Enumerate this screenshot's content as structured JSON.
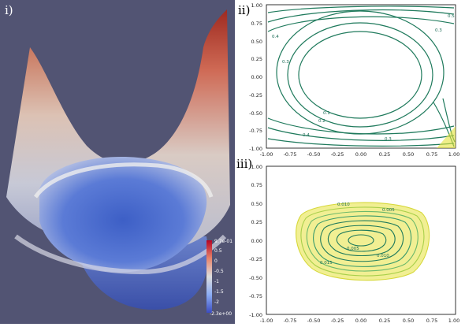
{
  "panels": {
    "surface": {
      "label": "i)",
      "colorbar": {
        "max_label": "9.7e-01",
        "min_label": "-2.3e+00",
        "ticks": [
          "0.5",
          "0",
          "-0.5",
          "-1",
          "-1.5",
          "-2"
        ],
        "colors": {
          "top": "#b40426",
          "mid": "#dddddd",
          "bottom": "#3b4cc0"
        }
      },
      "background": "#525473"
    },
    "contour_top": {
      "label": "ii)",
      "x_ticks": [
        "-1.00",
        "-0.75",
        "-0.50",
        "-0.25",
        "0.00",
        "0.25",
        "0.50",
        "0.75",
        "1.00"
      ],
      "y_ticks": [
        "1.00",
        "0.75",
        "0.50",
        "0.25",
        "0.00",
        "-0.25",
        "-0.50",
        "-0.75",
        "-1.00"
      ],
      "contour_labels": [
        "0.4",
        "0.3",
        "0.2",
        "0.1",
        "0.3",
        "0.4",
        "0.5",
        "0.1"
      ],
      "line_color": "#1f7a5c"
    },
    "contour_bottom": {
      "label": "iii)",
      "x_ticks": [
        "-1.00",
        "-0.75",
        "-0.50",
        "-0.25",
        "0.00",
        "0.25",
        "0.50",
        "0.75",
        "1.00"
      ],
      "y_ticks": [
        "1.00",
        "0.75",
        "0.50",
        "0.25",
        "0.00",
        "-0.25",
        "-0.50",
        "-0.75",
        "-1.00"
      ],
      "contour_labels": [
        "0.005",
        "0.010",
        "0.005",
        "0.010",
        "0.015"
      ],
      "line_color": "#1f7a5c",
      "edge_color": "#e5e23a"
    }
  }
}
